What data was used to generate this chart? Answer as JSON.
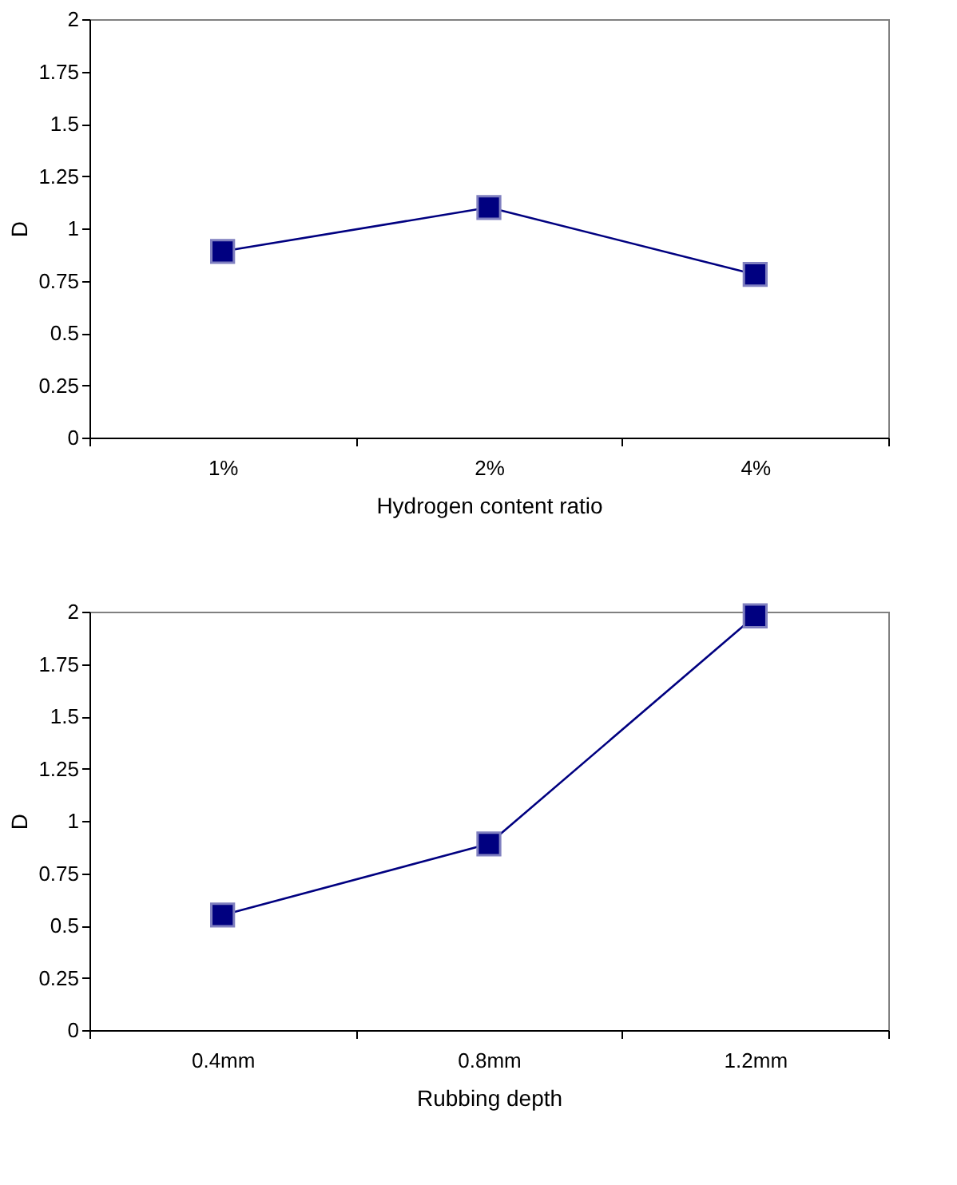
{
  "chart_data": [
    {
      "type": "line",
      "categories": [
        "1%",
        "2%",
        "4%"
      ],
      "xlabel": "Hydrogen content ratio",
      "ylabel": "D",
      "ylim": [
        0,
        2
      ],
      "yticks": [
        0,
        0.25,
        0.5,
        0.75,
        1,
        1.25,
        1.5,
        1.75,
        2
      ],
      "marker": "square",
      "grid": false,
      "series": [
        {
          "color": "#000080",
          "values": [
            0.89,
            1.1,
            0.78
          ]
        }
      ]
    },
    {
      "type": "line",
      "categories": [
        "0.4mm",
        "0.8mm",
        "1.2mm"
      ],
      "xlabel": "Rubbing depth",
      "ylabel": "D",
      "ylim": [
        0,
        2
      ],
      "yticks": [
        0,
        0.25,
        0.5,
        0.75,
        1,
        1.25,
        1.5,
        1.75,
        2
      ],
      "marker": "square",
      "grid": false,
      "series": [
        {
          "color": "#000080",
          "values": [
            0.55,
            0.89,
            1.98
          ]
        }
      ]
    }
  ]
}
